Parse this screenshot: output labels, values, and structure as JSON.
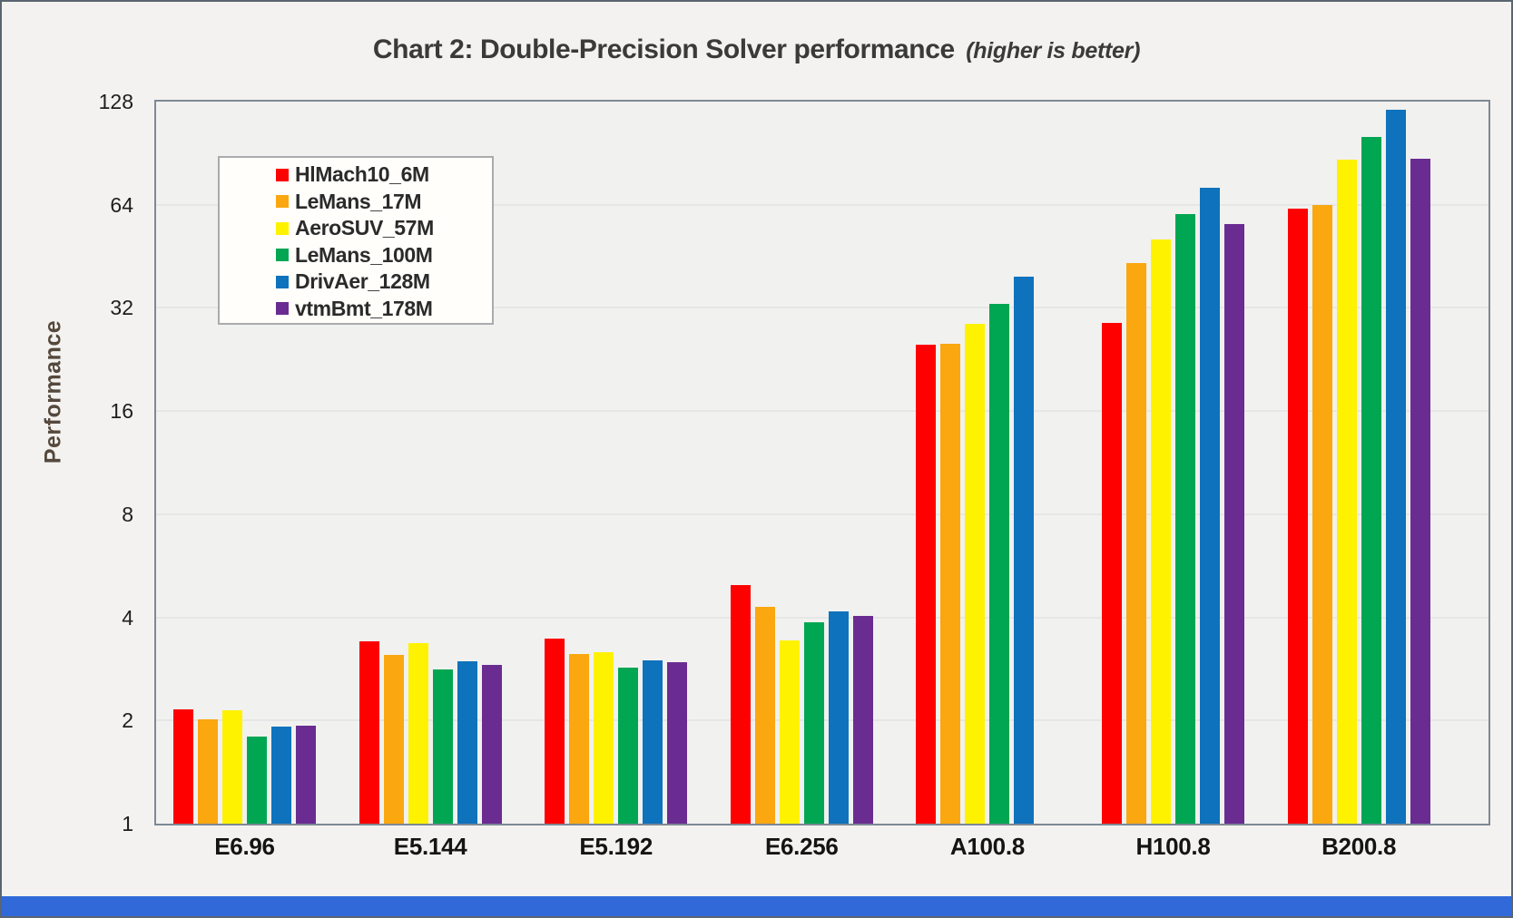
{
  "title": {
    "main": "Chart 2: Double-Precision Solver performance",
    "note": "(higher is better)"
  },
  "chart_data": {
    "type": "bar",
    "title": "Chart 2: Double-Precision Solver performance (higher is better)",
    "ylabel": "Performance",
    "xlabel": "",
    "y_scale": "log2",
    "ylim": [
      1,
      128
    ],
    "yticks": [
      1,
      2,
      4,
      8,
      16,
      32,
      64,
      128
    ],
    "grid": true,
    "legend_position": "upper-left",
    "categories": [
      "E6.96",
      "E5.144",
      "E5.192",
      "E6.256",
      "A100.8",
      "H100.8",
      "B200.8"
    ],
    "series": [
      {
        "name": "HlMach10_6M",
        "color": "#FE0000",
        "values": [
          2.16,
          3.4,
          3.46,
          4.97,
          25.0,
          29.0,
          62.5
        ]
      },
      {
        "name": "LeMans_17M",
        "color": "#FAA710",
        "values": [
          2.02,
          3.1,
          3.12,
          4.3,
          25.2,
          43.2,
          64.0
        ]
      },
      {
        "name": "AeroSUV_57M",
        "color": "#FFF200",
        "values": [
          2.14,
          3.36,
          3.16,
          3.42,
          28.8,
          50.8,
          86.6
        ]
      },
      {
        "name": "LeMans_100M",
        "color": "#00A651",
        "values": [
          1.8,
          2.82,
          2.85,
          3.86,
          32.9,
          60.2,
          101
        ]
      },
      {
        "name": "DrivAer_128M",
        "color": "#0E72BD",
        "values": [
          1.92,
          2.97,
          2.99,
          4.17,
          39.4,
          71.8,
          121
        ]
      },
      {
        "name": "vtmBmt_178M",
        "color": "#6A2C91",
        "values": [
          1.93,
          2.9,
          2.96,
          4.05,
          null,
          56.4,
          87.2
        ]
      }
    ]
  }
}
